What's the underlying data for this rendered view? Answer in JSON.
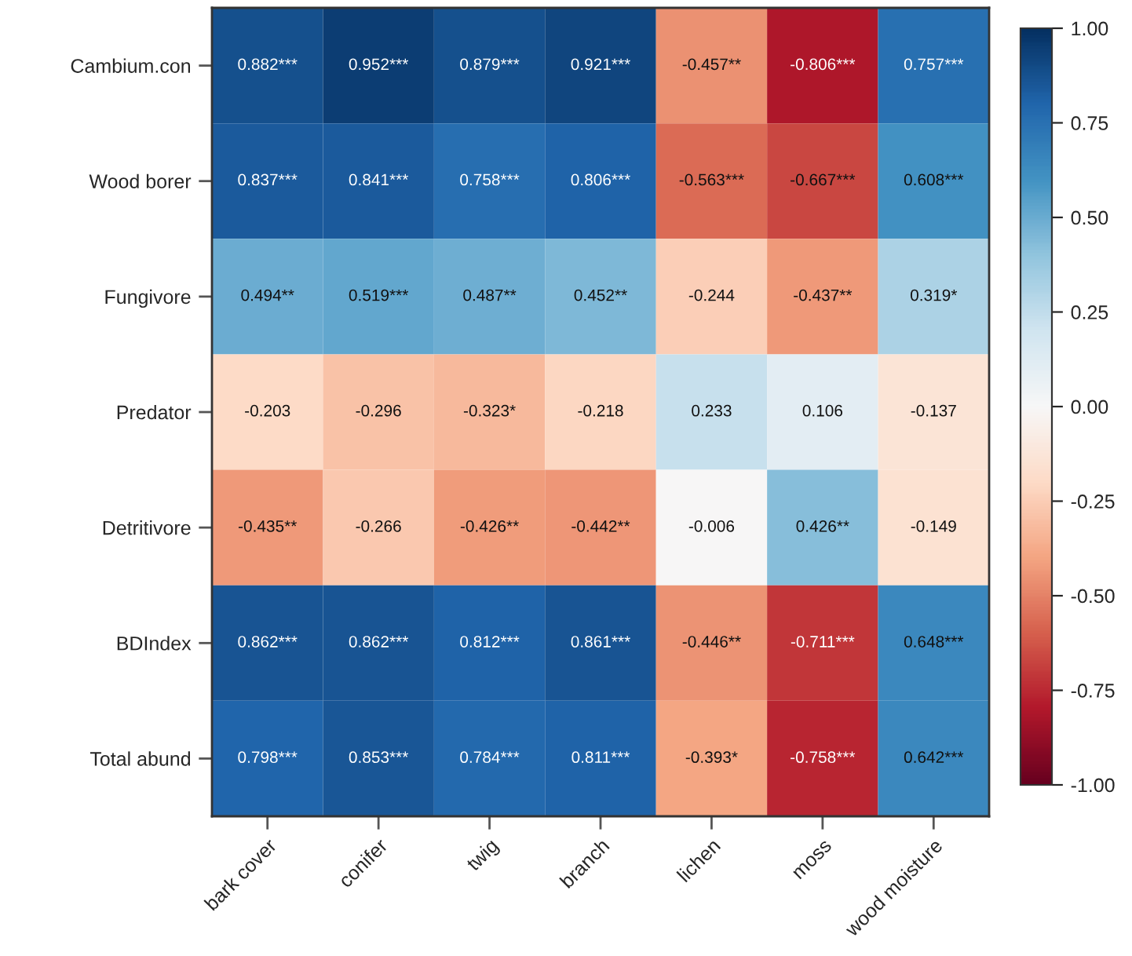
{
  "chart_data": {
    "type": "heatmap",
    "categories": [
      "bark cover",
      "conifer",
      "twig",
      "branch",
      "lichen",
      "moss",
      "wood moisture"
    ],
    "y_categories": [
      "Cambium.con",
      "Wood borer",
      "Fungivore",
      "Predator",
      "Detritivore",
      "BDIndex",
      "Total abund"
    ],
    "cells": [
      [
        0.882,
        0.952,
        0.879,
        0.921,
        -0.457,
        -0.806,
        0.757
      ],
      [
        0.837,
        0.841,
        0.758,
        0.806,
        -0.563,
        -0.667,
        0.608
      ],
      [
        0.494,
        0.519,
        0.487,
        0.452,
        -0.244,
        -0.437,
        0.319
      ],
      [
        -0.203,
        -0.296,
        -0.323,
        -0.218,
        0.233,
        0.106,
        -0.137
      ],
      [
        -0.435,
        -0.266,
        -0.426,
        -0.442,
        -0.006,
        0.426,
        -0.149
      ],
      [
        0.862,
        0.862,
        0.812,
        0.861,
        -0.446,
        -0.711,
        0.648
      ],
      [
        0.798,
        0.853,
        0.784,
        0.811,
        -0.393,
        -0.758,
        0.642
      ]
    ],
    "cell_labels": [
      [
        "0.882***",
        "0.952***",
        "0.879***",
        "0.921***",
        "-0.457**",
        "-0.806***",
        "0.757***"
      ],
      [
        "0.837***",
        "0.841***",
        "0.758***",
        "0.806***",
        "-0.563***",
        "-0.667***",
        "0.608***"
      ],
      [
        "0.494**",
        "0.519***",
        "0.487**",
        "0.452**",
        "-0.244",
        "-0.437**",
        "0.319*"
      ],
      [
        "-0.203",
        "-0.296",
        "-0.323*",
        "-0.218",
        "0.233",
        "0.106",
        "-0.137"
      ],
      [
        "-0.435**",
        "-0.266",
        "-0.426**",
        "-0.442**",
        "-0.006",
        "0.426**",
        "-0.149"
      ],
      [
        "0.862***",
        "0.862***",
        "0.812***",
        "0.861***",
        "-0.446**",
        "-0.711***",
        "0.648***"
      ],
      [
        "0.798***",
        "0.853***",
        "0.784***",
        "0.811***",
        "-0.393*",
        "-0.758***",
        "0.642***"
      ]
    ],
    "clim": [
      -1.0,
      1.0
    ],
    "cticks": [
      {
        "value": 1.0,
        "label": "1.00"
      },
      {
        "value": 0.75,
        "label": "0.75"
      },
      {
        "value": 0.5,
        "label": "0.50"
      },
      {
        "value": 0.25,
        "label": "0.25"
      },
      {
        "value": 0.0,
        "label": "0.00"
      },
      {
        "value": -0.25,
        "label": "-0.25"
      },
      {
        "value": -0.5,
        "label": "-0.50"
      },
      {
        "value": -0.75,
        "label": "-0.75"
      },
      {
        "value": -1.0,
        "label": "-1.00"
      }
    ]
  }
}
